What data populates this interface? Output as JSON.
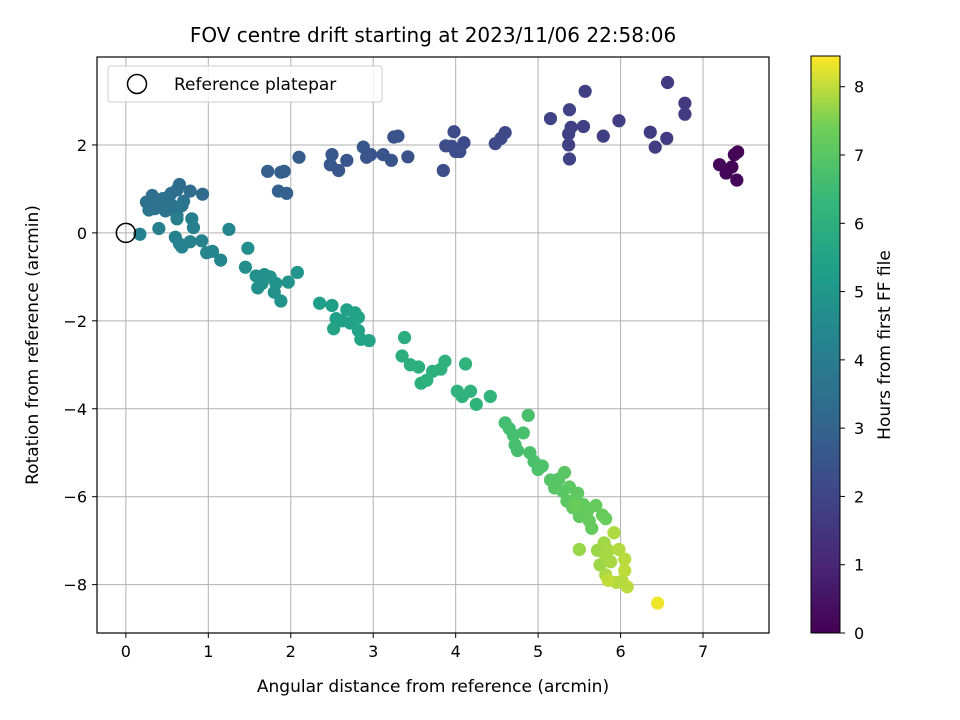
{
  "chart_data": {
    "type": "scatter",
    "title": "FOV centre drift starting at 2023/11/06 22:58:06",
    "xlabel": "Angular distance from reference (arcmin)",
    "ylabel": "Rotation from reference (arcmin)",
    "xlim": [
      -0.35,
      7.8
    ],
    "ylim": [
      -9.1,
      4.0
    ],
    "xticks": [
      0,
      1,
      2,
      3,
      4,
      5,
      6,
      7
    ],
    "yticks": [
      -8,
      -6,
      -4,
      -2,
      0,
      2
    ],
    "grid": true,
    "colormap": "viridis",
    "colorbar": {
      "label": "Hours from first FF file",
      "range": [
        0,
        8.45
      ],
      "ticks": [
        0,
        1,
        2,
        3,
        4,
        5,
        6,
        7,
        8
      ]
    },
    "legend": {
      "placement": "top-left",
      "entries": [
        "Reference platepar"
      ]
    },
    "reference": {
      "x": 0,
      "y": 0
    },
    "points": [
      [
        7.42,
        1.84,
        0.05
      ],
      [
        7.38,
        1.78,
        0.08
      ],
      [
        7.35,
        1.5,
        0.1
      ],
      [
        7.28,
        1.36,
        0.12
      ],
      [
        7.41,
        1.2,
        0.15
      ],
      [
        7.2,
        1.55,
        0.18
      ],
      [
        6.78,
        2.95,
        1.6
      ],
      [
        6.78,
        2.7,
        1.62
      ],
      [
        6.57,
        3.42,
        1.65
      ],
      [
        6.56,
        2.15,
        1.68
      ],
      [
        6.36,
        2.29,
        1.7
      ],
      [
        6.42,
        1.95,
        1.72
      ],
      [
        5.98,
        2.55,
        1.75
      ],
      [
        5.79,
        2.2,
        1.78
      ],
      [
        5.57,
        3.22,
        1.8
      ],
      [
        5.55,
        2.42,
        1.82
      ],
      [
        5.4,
        2.4,
        1.84
      ],
      [
        5.37,
        2.25,
        1.86
      ],
      [
        5.37,
        2.0,
        1.88
      ],
      [
        5.38,
        1.68,
        1.9
      ],
      [
        5.38,
        2.8,
        1.92
      ],
      [
        5.15,
        2.6,
        1.94
      ],
      [
        4.6,
        2.28,
        2.1
      ],
      [
        4.55,
        2.15,
        2.12
      ],
      [
        4.48,
        2.03,
        2.14
      ],
      [
        4.1,
        2.05,
        2.16
      ],
      [
        3.98,
        2.3,
        2.18
      ],
      [
        4.05,
        1.85,
        2.2
      ],
      [
        3.95,
        1.97,
        2.22
      ],
      [
        3.88,
        1.98,
        2.24
      ],
      [
        3.85,
        1.42,
        2.26
      ],
      [
        4.0,
        1.85,
        2.28
      ],
      [
        3.42,
        1.73,
        2.4
      ],
      [
        3.3,
        2.2,
        2.42
      ],
      [
        3.25,
        2.18,
        2.44
      ],
      [
        3.22,
        1.65,
        2.46
      ],
      [
        3.12,
        1.78,
        2.48
      ],
      [
        2.97,
        1.78,
        2.5
      ],
      [
        2.92,
        1.72,
        2.52
      ],
      [
        2.88,
        1.95,
        2.54
      ],
      [
        2.68,
        1.65,
        2.56
      ],
      [
        2.58,
        1.42,
        2.58
      ],
      [
        2.5,
        1.78,
        2.6
      ],
      [
        2.48,
        1.55,
        2.62
      ],
      [
        2.1,
        1.72,
        2.8
      ],
      [
        1.92,
        1.4,
        2.82
      ],
      [
        1.88,
        1.38,
        2.84
      ],
      [
        1.72,
        1.4,
        2.86
      ],
      [
        1.85,
        0.95,
        2.88
      ],
      [
        1.95,
        0.9,
        2.9
      ],
      [
        0.93,
        0.88,
        3.3
      ],
      [
        0.78,
        0.95,
        3.32
      ],
      [
        0.65,
        1.1,
        3.34
      ],
      [
        0.62,
        0.98,
        3.36
      ],
      [
        0.55,
        0.9,
        3.38
      ],
      [
        0.52,
        0.75,
        3.4
      ],
      [
        0.58,
        0.6,
        3.42
      ],
      [
        0.45,
        0.78,
        3.44
      ],
      [
        0.38,
        0.7,
        3.46
      ],
      [
        0.32,
        0.85,
        3.48
      ],
      [
        0.25,
        0.7,
        3.5
      ],
      [
        0.35,
        0.55,
        3.52
      ],
      [
        0.42,
        0.62,
        3.54
      ],
      [
        0.5,
        0.8,
        3.56
      ],
      [
        0.7,
        0.72,
        3.58
      ],
      [
        0.6,
        0.55,
        3.6
      ],
      [
        0.48,
        0.5,
        3.62
      ],
      [
        0.28,
        0.52,
        3.64
      ],
      [
        0.62,
        0.4,
        3.66
      ],
      [
        0.68,
        0.62,
        3.68
      ],
      [
        0.62,
        0.32,
        4.1
      ],
      [
        0.8,
        0.32,
        4.12
      ],
      [
        0.4,
        0.1,
        4.14
      ],
      [
        0.82,
        0.12,
        4.16
      ],
      [
        0.6,
        -0.1,
        4.18
      ],
      [
        0.17,
        -0.03,
        4.2
      ],
      [
        0.65,
        -0.25,
        4.22
      ],
      [
        0.68,
        -0.32,
        4.24
      ],
      [
        0.78,
        -0.2,
        4.26
      ],
      [
        0.92,
        -0.18,
        4.28
      ],
      [
        0.98,
        -0.45,
        4.3
      ],
      [
        1.05,
        -0.42,
        4.32
      ],
      [
        1.15,
        -0.62,
        4.34
      ],
      [
        1.25,
        0.08,
        4.36
      ],
      [
        1.48,
        -0.35,
        4.7
      ],
      [
        1.45,
        -0.78,
        4.72
      ],
      [
        1.58,
        -0.98,
        4.74
      ],
      [
        1.6,
        -1.25,
        4.76
      ],
      [
        1.65,
        -1.15,
        4.78
      ],
      [
        1.68,
        -0.95,
        4.8
      ],
      [
        1.75,
        -1.0,
        4.82
      ],
      [
        1.8,
        -1.35,
        4.84
      ],
      [
        1.82,
        -1.15,
        4.86
      ],
      [
        1.88,
        -1.55,
        4.88
      ],
      [
        1.97,
        -1.12,
        4.9
      ],
      [
        2.08,
        -0.9,
        4.92
      ],
      [
        2.35,
        -1.6,
        5.3
      ],
      [
        2.5,
        -1.65,
        5.32
      ],
      [
        2.55,
        -1.95,
        5.34
      ],
      [
        2.62,
        -2.0,
        5.36
      ],
      [
        2.68,
        -1.75,
        5.38
      ],
      [
        2.72,
        -2.05,
        5.4
      ],
      [
        2.78,
        -1.82,
        5.42
      ],
      [
        2.82,
        -2.22,
        5.44
      ],
      [
        2.82,
        -1.92,
        5.46
      ],
      [
        2.85,
        -2.42,
        5.48
      ],
      [
        2.95,
        -2.45,
        5.5
      ],
      [
        2.52,
        -2.18,
        5.52
      ],
      [
        3.38,
        -2.38,
        5.9
      ],
      [
        3.35,
        -2.8,
        5.92
      ],
      [
        3.45,
        -3.0,
        5.94
      ],
      [
        3.55,
        -3.05,
        5.96
      ],
      [
        3.58,
        -3.42,
        5.98
      ],
      [
        3.65,
        -3.35,
        6.0
      ],
      [
        3.72,
        -3.15,
        6.02
      ],
      [
        3.82,
        -3.1,
        6.04
      ],
      [
        3.87,
        -2.92,
        6.06
      ],
      [
        4.02,
        -3.6,
        6.08
      ],
      [
        4.08,
        -3.72,
        6.1
      ],
      [
        4.12,
        -2.98,
        6.12
      ],
      [
        4.18,
        -3.6,
        6.14
      ],
      [
        4.25,
        -3.9,
        6.16
      ],
      [
        4.42,
        -3.72,
        6.18
      ],
      [
        4.6,
        -4.32,
        6.6
      ],
      [
        4.65,
        -4.45,
        6.62
      ],
      [
        4.7,
        -4.6,
        6.64
      ],
      [
        4.72,
        -4.82,
        6.66
      ],
      [
        4.75,
        -4.95,
        6.68
      ],
      [
        4.82,
        -4.55,
        6.7
      ],
      [
        4.88,
        -4.15,
        6.72
      ],
      [
        4.9,
        -5.0,
        6.74
      ],
      [
        4.95,
        -5.2,
        6.76
      ],
      [
        5.0,
        -5.38,
        6.78
      ],
      [
        5.05,
        -5.3,
        6.8
      ],
      [
        5.15,
        -5.62,
        6.95
      ],
      [
        5.2,
        -5.8,
        6.97
      ],
      [
        5.25,
        -5.6,
        6.99
      ],
      [
        5.3,
        -5.88,
        7.01
      ],
      [
        5.32,
        -5.45,
        7.03
      ],
      [
        5.35,
        -6.1,
        7.05
      ],
      [
        5.38,
        -5.78,
        7.07
      ],
      [
        5.42,
        -6.25,
        7.09
      ],
      [
        5.45,
        -6.05,
        7.11
      ],
      [
        5.48,
        -5.92,
        7.13
      ],
      [
        5.5,
        -6.45,
        7.15
      ],
      [
        5.55,
        -6.18,
        7.17
      ],
      [
        5.6,
        -6.32,
        7.19
      ],
      [
        5.62,
        -6.55,
        7.21
      ],
      [
        5.65,
        -6.72,
        7.23
      ],
      [
        5.7,
        -6.2,
        7.25
      ],
      [
        5.78,
        -6.42,
        7.27
      ],
      [
        5.82,
        -6.5,
        7.29
      ],
      [
        5.45,
        -6.2,
        7.31
      ],
      [
        5.5,
        -7.2,
        7.7
      ],
      [
        5.72,
        -7.22,
        7.72
      ],
      [
        5.75,
        -7.55,
        7.74
      ],
      [
        5.8,
        -7.05,
        7.76
      ],
      [
        5.82,
        -7.35,
        7.78
      ],
      [
        5.85,
        -7.22,
        7.8
      ],
      [
        5.88,
        -7.48,
        7.82
      ],
      [
        5.82,
        -7.78,
        7.84
      ],
      [
        5.92,
        -6.82,
        7.86
      ],
      [
        5.95,
        -7.95,
        7.88
      ],
      [
        5.98,
        -7.2,
        7.9
      ],
      [
        6.02,
        -7.92,
        7.92
      ],
      [
        6.05,
        -7.42,
        7.94
      ],
      [
        6.08,
        -8.05,
        7.96
      ],
      [
        6.05,
        -7.68,
        7.98
      ],
      [
        5.85,
        -7.9,
        8.0
      ],
      [
        6.45,
        -8.42,
        8.35
      ]
    ]
  }
}
